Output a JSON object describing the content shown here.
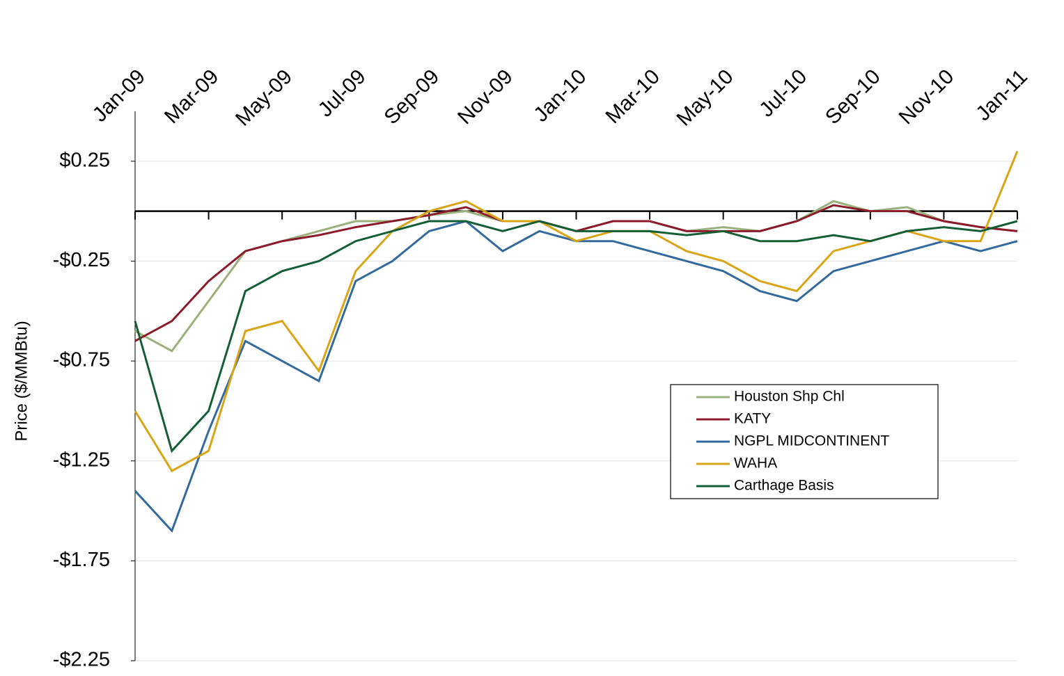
{
  "chart_data": {
    "type": "line",
    "y_label": "Price ($/MMBtu)",
    "categories": [
      "Jan-09",
      null,
      "Mar-09",
      null,
      "May-09",
      null,
      "Jul-09",
      null,
      "Sep-09",
      null,
      "Nov-09",
      null,
      "Jan-10",
      null,
      "Mar-10",
      null,
      "May-10",
      null,
      "Jul-10",
      null,
      "Sep-10",
      null,
      "Nov-10",
      null,
      "Jan-11"
    ],
    "ylim": [
      -2.25,
      0.5
    ],
    "yticks": [
      {
        "value": 0.25,
        "label": "$0.25"
      },
      {
        "value": -0.25,
        "label": "-$0.25"
      },
      {
        "value": -0.75,
        "label": "-$0.75"
      },
      {
        "value": -1.25,
        "label": "-$1.25"
      },
      {
        "value": -1.75,
        "label": "-$1.75"
      },
      {
        "value": -2.25,
        "label": "-$2.25"
      }
    ],
    "grid": true,
    "series": [
      {
        "name": "Houston Shp Chl",
        "color": "#9bb07a",
        "values": [
          -0.6,
          -0.7,
          -0.45,
          -0.2,
          -0.15,
          -0.1,
          -0.05,
          -0.05,
          -0.02,
          0.0,
          -0.05,
          -0.05,
          -0.1,
          -0.05,
          -0.05,
          -0.1,
          -0.08,
          -0.1,
          -0.05,
          0.05,
          0.0,
          0.02,
          -0.05,
          -0.08,
          -0.1
        ]
      },
      {
        "name": "KATY",
        "color": "#8b1a2a",
        "values": [
          -0.65,
          -0.55,
          -0.35,
          -0.2,
          -0.15,
          -0.12,
          -0.08,
          -0.05,
          -0.02,
          0.02,
          -0.05,
          -0.05,
          -0.1,
          -0.05,
          -0.05,
          -0.1,
          -0.1,
          -0.1,
          -0.05,
          0.03,
          0.0,
          0.0,
          -0.05,
          -0.08,
          -0.1
        ]
      },
      {
        "name": "NGPL MIDCONTINENT",
        "color": "#336a9e",
        "values": [
          -1.4,
          -1.6,
          -1.1,
          -0.65,
          -0.75,
          -0.85,
          -0.35,
          -0.25,
          -0.1,
          -0.05,
          -0.2,
          -0.1,
          -0.15,
          -0.15,
          -0.2,
          -0.25,
          -0.3,
          -0.4,
          -0.45,
          -0.3,
          -0.25,
          -0.2,
          -0.15,
          -0.2,
          -0.15
        ]
      },
      {
        "name": "WAHA",
        "color": "#d9a516",
        "values": [
          -1.0,
          -1.3,
          -1.2,
          -0.6,
          -0.55,
          -0.8,
          -0.3,
          -0.1,
          0.0,
          0.05,
          -0.05,
          -0.05,
          -0.15,
          -0.1,
          -0.1,
          -0.2,
          -0.25,
          -0.35,
          -0.4,
          -0.2,
          -0.15,
          -0.1,
          -0.15,
          -0.15,
          0.3
        ]
      },
      {
        "name": "Carthage Basis",
        "color": "#135e35",
        "values": [
          -0.55,
          -1.2,
          -1.0,
          -0.4,
          -0.3,
          -0.25,
          -0.15,
          -0.1,
          -0.05,
          -0.05,
          -0.1,
          -0.05,
          -0.1,
          -0.1,
          -0.1,
          -0.12,
          -0.1,
          -0.15,
          -0.15,
          -0.12,
          -0.15,
          -0.1,
          -0.08,
          -0.1,
          -0.05
        ]
      }
    ]
  }
}
